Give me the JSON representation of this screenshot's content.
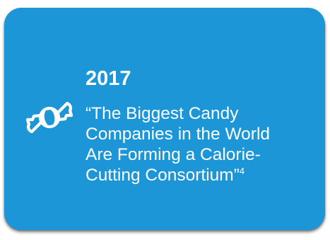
{
  "card": {
    "icon": "candy-icon",
    "background_color": "#1c96d6",
    "year": "2017",
    "quote_lines": [
      "“The Biggest Candy",
      "Companies in the World",
      "Are Forming a Calorie-",
      "Cutting Consortium”"
    ],
    "footnote": "4"
  }
}
